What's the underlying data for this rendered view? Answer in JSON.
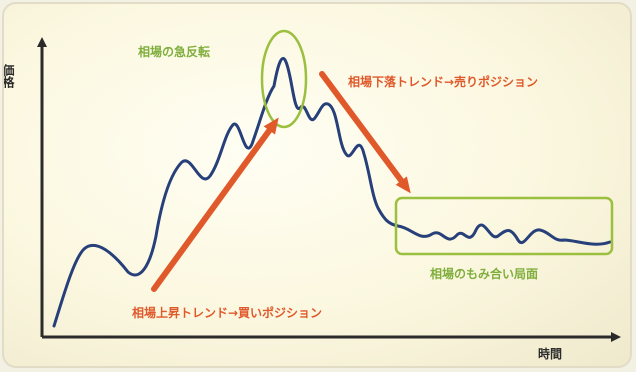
{
  "axes": {
    "y_label": "価格",
    "x_label": "時間"
  },
  "annotations": {
    "reversal": "相場の急反転",
    "downtrend": "相場下落トレンド→売りポジション",
    "uptrend": "相場上昇トレンド→買いポジション",
    "range": "相場のもみ合い局面"
  },
  "colors": {
    "price_line": "#27407a",
    "arrow": "#e0592b",
    "highlight": "#9bbf3f",
    "green_text": "#7fae3c",
    "orange_text": "#e0592b",
    "axis": "#2b2b2b"
  }
}
